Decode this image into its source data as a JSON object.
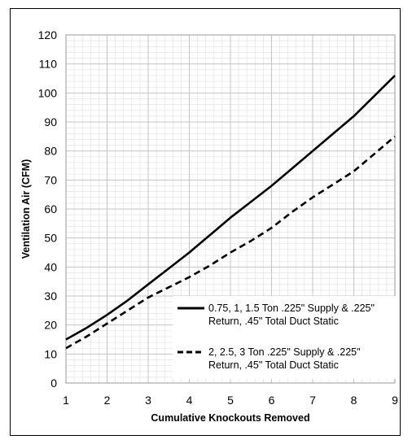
{
  "chart_data": {
    "type": "line",
    "xlabel": "Cumulative Knockouts Removed",
    "ylabel": "Ventilation Air (CFM)",
    "xlim": [
      1,
      9
    ],
    "ylim": [
      0,
      120
    ],
    "x_ticks": [
      1,
      2,
      3,
      4,
      5,
      6,
      7,
      8,
      9
    ],
    "y_ticks": [
      0,
      10,
      20,
      30,
      40,
      50,
      60,
      70,
      80,
      90,
      100,
      110,
      120
    ],
    "grid": true,
    "legend_position": "lower-right",
    "series": [
      {
        "name_lines": [
          "0.75, 1, 1.5 Ton .225\" Supply & .225\"",
          "Return, .45\" Total Duct Static"
        ],
        "style": "solid",
        "x": [
          1,
          1.5,
          2,
          2.5,
          3,
          3.5,
          4,
          4.5,
          5,
          5.5,
          6,
          6.5,
          7,
          7.5,
          8,
          8.5,
          9
        ],
        "y": [
          15,
          19,
          23.5,
          28.5,
          34,
          39.5,
          45,
          51,
          57,
          62.5,
          68,
          74,
          80,
          86,
          92,
          99,
          106
        ]
      },
      {
        "name_lines": [
          "2, 2.5, 3 Ton .225\" Supply & .225\"",
          "Return, .45\" Total Duct Static"
        ],
        "style": "dashed",
        "x": [
          1,
          1.5,
          2,
          2.5,
          3,
          3.5,
          4,
          4.5,
          5,
          5.5,
          6,
          6.5,
          7,
          7.5,
          8,
          8.5,
          9
        ],
        "y": [
          12,
          16,
          20.5,
          25,
          29.5,
          33,
          36.5,
          40.5,
          45,
          49,
          53.5,
          59,
          64,
          68.5,
          73,
          79,
          85
        ]
      }
    ]
  }
}
